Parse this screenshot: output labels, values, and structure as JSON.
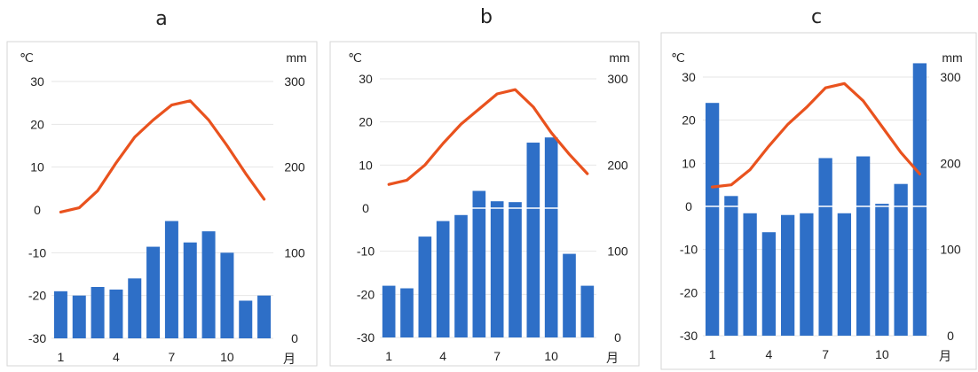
{
  "chart_data": [
    {
      "type": "bar+line",
      "title": "a",
      "temp_unit": "℃",
      "precip_unit": "mm",
      "month_unit": "月",
      "x_ticks": [
        "1",
        "4",
        "7",
        "10"
      ],
      "temp_ylim": [
        -30,
        30
      ],
      "temp_ticks": [
        "30",
        "20",
        "10",
        "0",
        "-10",
        "-20",
        "-30"
      ],
      "precip_ylim": [
        0,
        300
      ],
      "precip_ticks": [
        "300",
        "200",
        "100",
        "0"
      ],
      "months": [
        1,
        2,
        3,
        4,
        5,
        6,
        7,
        8,
        9,
        10,
        11,
        12
      ],
      "temperature": [
        -0.5,
        0.5,
        4.5,
        11,
        17,
        21,
        24.5,
        25.5,
        21,
        15,
        8.5,
        2.5
      ],
      "precipitation": [
        55,
        50,
        60,
        57,
        70,
        107,
        137,
        112,
        125,
        100,
        44,
        50
      ]
    },
    {
      "type": "bar+line",
      "title": "b",
      "temp_unit": "℃",
      "precip_unit": "mm",
      "month_unit": "月",
      "x_ticks": [
        "1",
        "4",
        "7",
        "10"
      ],
      "temp_ylim": [
        -30,
        30
      ],
      "temp_ticks": [
        "30",
        "20",
        "10",
        "0",
        "-10",
        "-20",
        "-30"
      ],
      "precip_ylim": [
        0,
        300
      ],
      "precip_ticks": [
        "300",
        "200",
        "100",
        "0"
      ],
      "months": [
        1,
        2,
        3,
        4,
        5,
        6,
        7,
        8,
        9,
        10,
        11,
        12
      ],
      "temperature": [
        5.5,
        6.5,
        10,
        15,
        19.5,
        23,
        26.5,
        27.5,
        23.5,
        17.5,
        12.5,
        8
      ],
      "precipitation": [
        60,
        57,
        117,
        135,
        142,
        170,
        158,
        157,
        226,
        232,
        97,
        60
      ]
    },
    {
      "type": "bar+line",
      "title": "c",
      "temp_unit": "℃",
      "precip_unit": "mm",
      "month_unit": "月",
      "x_ticks": [
        "1",
        "4",
        "7",
        "10"
      ],
      "temp_ylim": [
        -30,
        30
      ],
      "temp_ticks": [
        "30",
        "20",
        "10",
        "0",
        "-10",
        "-20",
        "-30"
      ],
      "precip_ylim": [
        0,
        300
      ],
      "precip_ticks": [
        "300",
        "200",
        "100",
        "0"
      ],
      "months": [
        1,
        2,
        3,
        4,
        5,
        6,
        7,
        8,
        9,
        10,
        11,
        12
      ],
      "temperature": [
        4.5,
        5,
        8.5,
        14,
        19,
        23,
        27.5,
        28.5,
        24.5,
        18.5,
        12.5,
        7.5
      ],
      "precipitation": [
        270,
        162,
        142,
        120,
        140,
        142,
        206,
        142,
        208,
        153,
        176,
        316
      ]
    }
  ],
  "colors": {
    "bar": "#2E6FC7",
    "line": "#E9521E",
    "grid": "#e6e6e6",
    "zero_line": "#ffffff",
    "frame": "#d6d6d6",
    "text": "#222222"
  }
}
